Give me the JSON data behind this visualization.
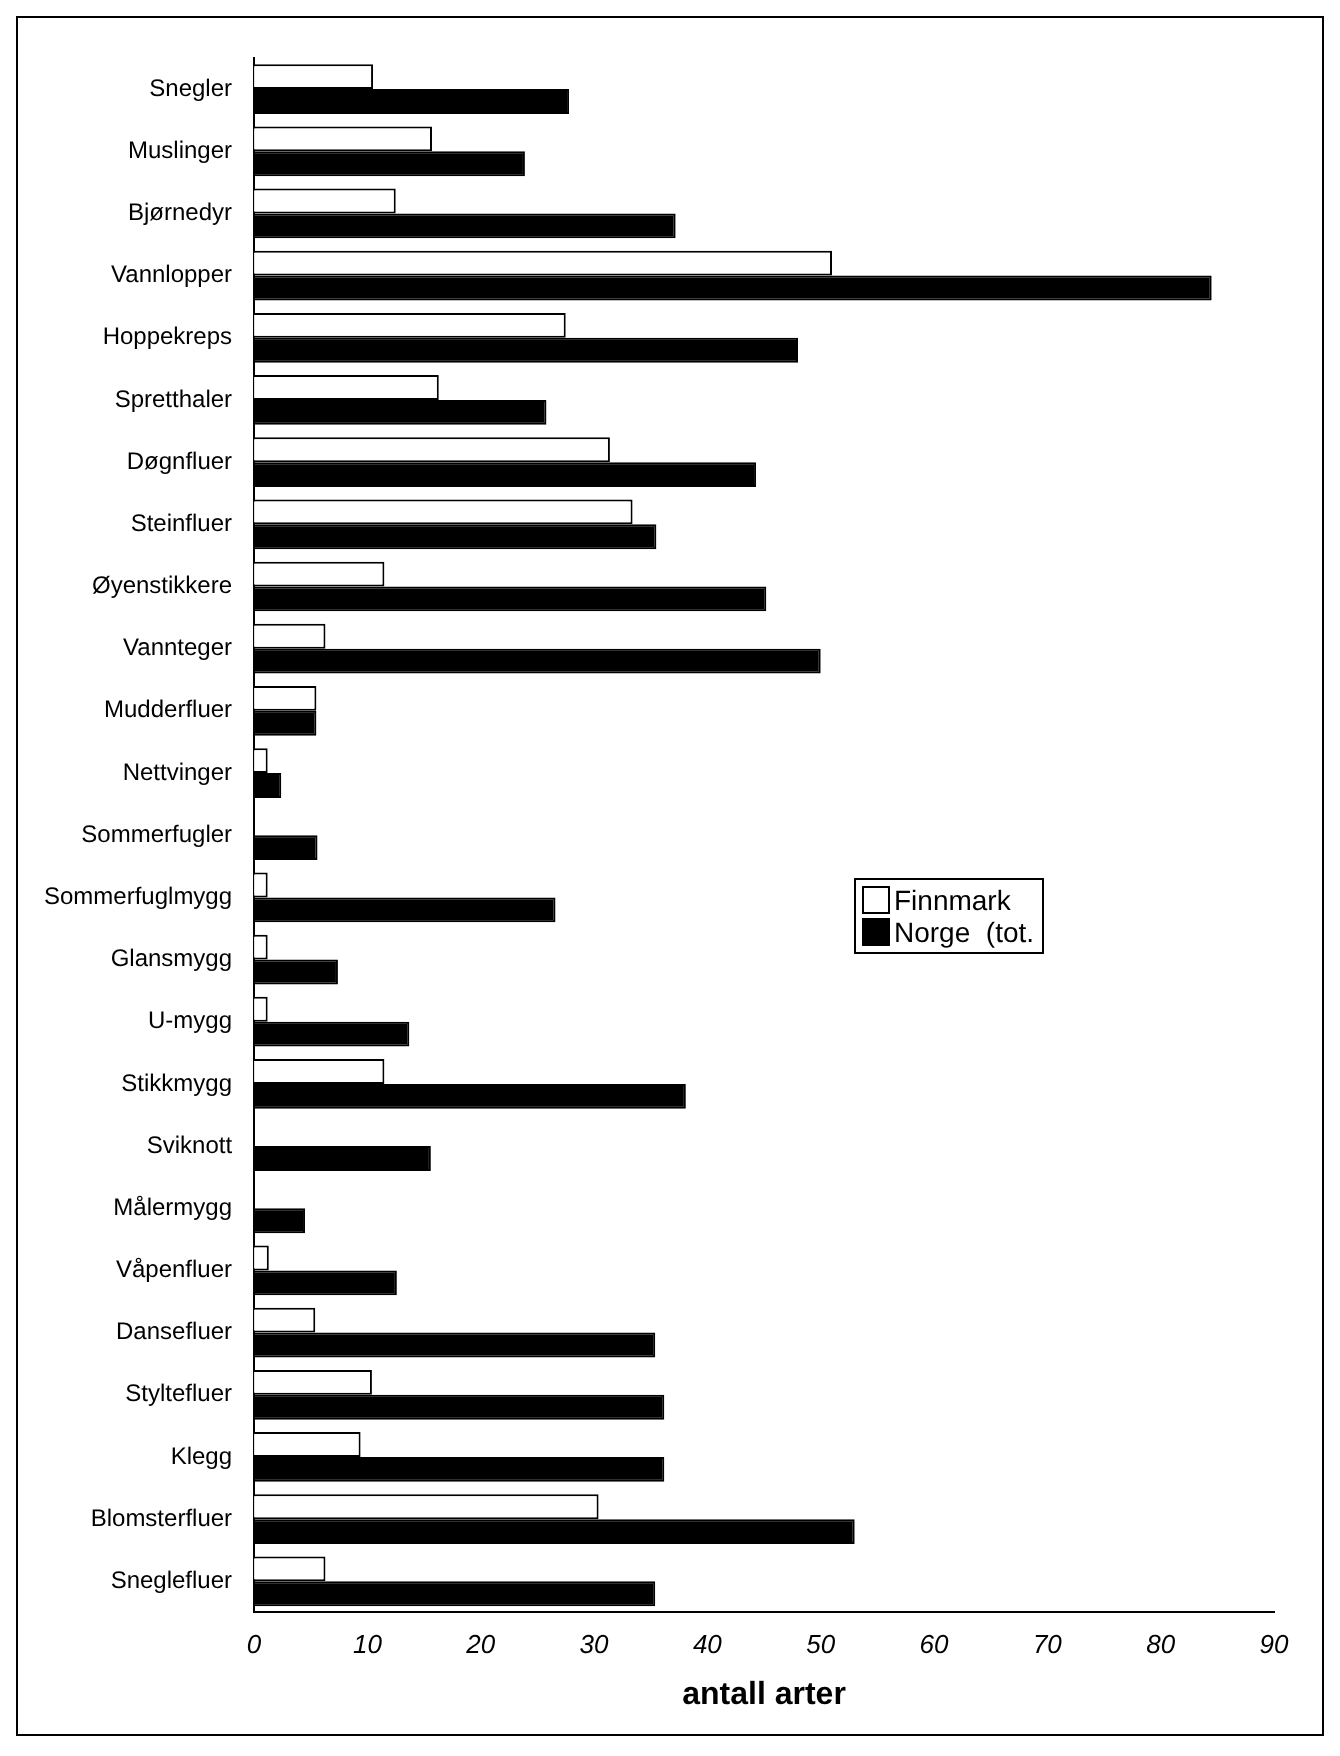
{
  "chart_data": {
    "type": "bar",
    "orientation": "horizontal",
    "xlabel": "antall arter",
    "categories": [
      "Snegler",
      "Muslinger",
      "Bjørnedyr",
      "Vannlopper",
      "Hoppekreps",
      "Spretthaler",
      "Døgnfluer",
      "Steinfluer",
      "Øyenstikkere",
      "Vannteger",
      "Mudderfluer",
      "Nettvinger",
      "Sommerfugler",
      "Sommerfuglmygg",
      "Glansmygg",
      "U-mygg",
      "Stikkmygg",
      "Sviknott",
      "Målermygg",
      "Våpenfluer",
      "Dansefluer",
      "Styltefluer",
      "Klegg",
      "Blomsterfluer",
      "Sneglefluer"
    ],
    "series": [
      {
        "name": "Finnmark",
        "color": "#ffffff",
        "values": [
          10.5,
          15.7,
          12.5,
          51,
          27.5,
          16.3,
          31.4,
          33.4,
          11.5,
          6.3,
          5.5,
          1.2,
          null,
          1.2,
          1.2,
          1.2,
          11.5,
          null,
          null,
          1.3,
          5.4,
          10.4,
          9.4,
          30.4,
          6.3
        ]
      },
      {
        "name": "Norge  (tot.",
        "color": "#000000",
        "values": [
          27.8,
          23.9,
          37.2,
          84.5,
          48,
          25.8,
          44.3,
          35.5,
          45.2,
          50,
          5.5,
          2.4,
          5.6,
          26.6,
          7.4,
          13.7,
          38.1,
          15.6,
          4.5,
          12.6,
          35.4,
          36.2,
          36.2,
          53,
          35.4
        ]
      }
    ],
    "xlim": [
      0,
      90
    ],
    "xticks": [
      0,
      10,
      20,
      30,
      40,
      50,
      60,
      70,
      80,
      90
    ],
    "grid": false,
    "legend": "right"
  }
}
